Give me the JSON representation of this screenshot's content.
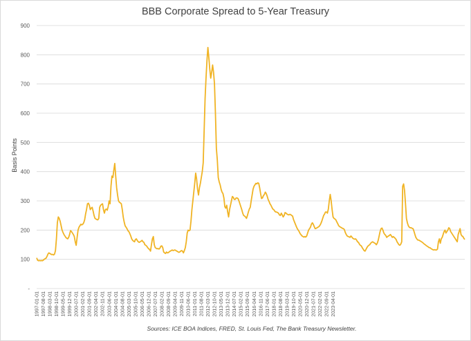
{
  "chart_data": {
    "type": "line",
    "title": "BBB Corporate Spread to 5-Year Treasury",
    "ylabel": "Basis Points",
    "xlabel": "",
    "source": "Sources: ICE BOA Indices, FRED, St. Louis Fed, The Bank Treasury Newsletter.",
    "ylim": [
      0,
      900
    ],
    "yticks": [
      0,
      100,
      200,
      300,
      400,
      500,
      600,
      700,
      800,
      900
    ],
    "ytick_labels": [
      "-",
      "100",
      "200",
      "300",
      "400",
      "500",
      "600",
      "700",
      "800",
      "900"
    ],
    "grid": true,
    "legend": "none",
    "line_color": "#f0b323",
    "x_start": "1997-01-01",
    "x_step_months": 1,
    "x_ticks": [
      "1997-01-01",
      "1997-08-01",
      "1998-03-01",
      "1998-10-01",
      "1999-05-01",
      "1999-12-01",
      "2000-07-01",
      "2001-02-01",
      "2001-09-01",
      "2002-04-01",
      "2002-11-01",
      "2003-06-01",
      "2004-01-01",
      "2004-08-01",
      "2005-03-01",
      "2005-10-01",
      "2006-05-01",
      "2006-12-01",
      "2007-07-01",
      "2008-02-01",
      "2008-09-01",
      "2009-04-01",
      "2009-11-01",
      "2010-06-01",
      "2011-01-01",
      "2011-08-01",
      "2012-03-01",
      "2012-10-01",
      "2013-05-01",
      "2013-12-01",
      "2014-07-01",
      "2015-02-01",
      "2015-09-01",
      "2016-04-01",
      "2016-11-01",
      "2017-06-01",
      "2018-01-01",
      "2018-08-01",
      "2019-03-01",
      "2019-10-01",
      "2020-05-01",
      "2020-12-01",
      "2021-07-01",
      "2022-02-01",
      "2022-09-01",
      "2023-04-01"
    ],
    "series": [
      {
        "values": [
          105,
          97,
          95,
          96,
          95,
          96,
          95,
          97,
          100,
          102,
          104,
          110,
          118,
          122,
          120,
          118,
          116,
          117,
          115,
          118,
          130,
          170,
          225,
          245,
          240,
          230,
          215,
          200,
          192,
          185,
          180,
          175,
          172,
          170,
          175,
          185,
          198,
          195,
          190,
          185,
          178,
          160,
          148,
          175,
          200,
          210,
          215,
          220,
          218,
          220,
          225,
          235,
          255,
          270,
          290,
          292,
          285,
          270,
          275,
          278,
          265,
          250,
          240,
          238,
          236,
          235,
          240,
          278,
          285,
          288,
          290,
          270,
          258,
          270,
          272,
          268,
          280,
          300,
          290,
          350,
          385,
          380,
          405,
          428,
          385,
          345,
          320,
          300,
          295,
          293,
          290,
          270,
          245,
          228,
          215,
          210,
          205,
          198,
          195,
          188,
          180,
          170,
          165,
          162,
          160,
          168,
          170,
          164,
          160,
          158,
          160,
          162,
          165,
          160,
          158,
          150,
          148,
          145,
          140,
          136,
          134,
          128,
          150,
          170,
          178,
          150,
          140,
          138,
          136,
          137,
          135,
          138,
          145,
          146,
          140,
          125,
          122,
          120,
          125,
          122,
          123,
          126,
          128,
          130,
          132,
          130,
          131,
          132,
          130,
          128,
          126,
          124,
          125,
          128,
          130,
          128,
          122,
          130,
          140,
          160,
          190,
          200,
          198,
          200,
          230,
          270,
          300,
          330,
          360,
          395,
          375,
          340,
          320,
          345,
          360,
          380,
          400,
          430,
          540,
          650,
          720,
          780,
          825,
          790,
          750,
          720,
          740,
          765,
          740,
          700,
          600,
          480,
          440,
          380,
          365,
          355,
          340,
          330,
          325,
          310,
          280,
          275,
          285,
          262,
          245,
          270,
          285,
          300,
          315,
          312,
          305,
          305,
          310,
          310,
          308,
          300,
          290,
          280,
          270,
          258,
          250,
          248,
          245,
          240,
          250,
          262,
          272,
          278,
          300,
          320,
          340,
          350,
          355,
          360,
          358,
          362,
          360,
          345,
          325,
          308,
          310,
          318,
          322,
          330,
          325,
          316,
          305,
          298,
          290,
          285,
          278,
          272,
          270,
          265,
          262,
          262,
          260,
          258,
          252,
          250,
          258,
          252,
          245,
          250,
          260,
          258,
          255,
          253,
          252,
          254,
          253,
          250,
          248,
          236,
          228,
          220,
          212,
          205,
          200,
          195,
          188,
          184,
          180,
          178,
          176,
          178,
          176,
          180,
          190,
          200,
          205,
          210,
          220,
          225,
          220,
          212,
          205,
          206,
          208,
          210,
          212,
          216,
          222,
          230,
          240,
          250,
          255,
          262,
          262,
          258,
          272,
          300,
          322,
          300,
          270,
          245,
          240,
          238,
          235,
          228,
          222,
          215,
          212,
          210,
          208,
          206,
          205,
          202,
          192,
          185,
          180,
          178,
          177,
          175,
          180,
          176,
          172,
          170,
          169,
          170,
          166,
          160,
          158,
          152,
          148,
          146,
          140,
          135,
          130,
          128,
          134,
          140,
          145,
          148,
          150,
          155,
          158,
          160,
          158,
          156,
          154,
          150,
          155,
          165,
          180,
          195,
          205,
          207,
          200,
          190,
          185,
          182,
          175,
          178,
          180,
          182,
          185,
          180,
          175,
          178,
          175,
          172,
          168,
          160,
          155,
          150,
          148,
          152,
          160,
          350,
          358,
          335,
          290,
          240,
          225,
          215,
          210,
          208,
          208,
          206,
          205,
          196,
          185,
          175,
          170,
          166,
          166,
          164,
          162,
          160,
          158,
          155,
          152,
          150,
          147,
          145,
          143,
          140,
          140,
          137,
          135,
          133,
          132,
          133,
          132,
          132,
          135,
          160,
          170,
          155,
          170,
          175,
          185,
          195,
          200,
          190,
          195,
          200,
          208,
          205,
          195,
          190,
          185,
          180,
          175,
          170,
          165,
          160,
          185,
          195,
          205,
          185,
          180,
          178,
          172,
          168
        ]
      }
    ]
  }
}
